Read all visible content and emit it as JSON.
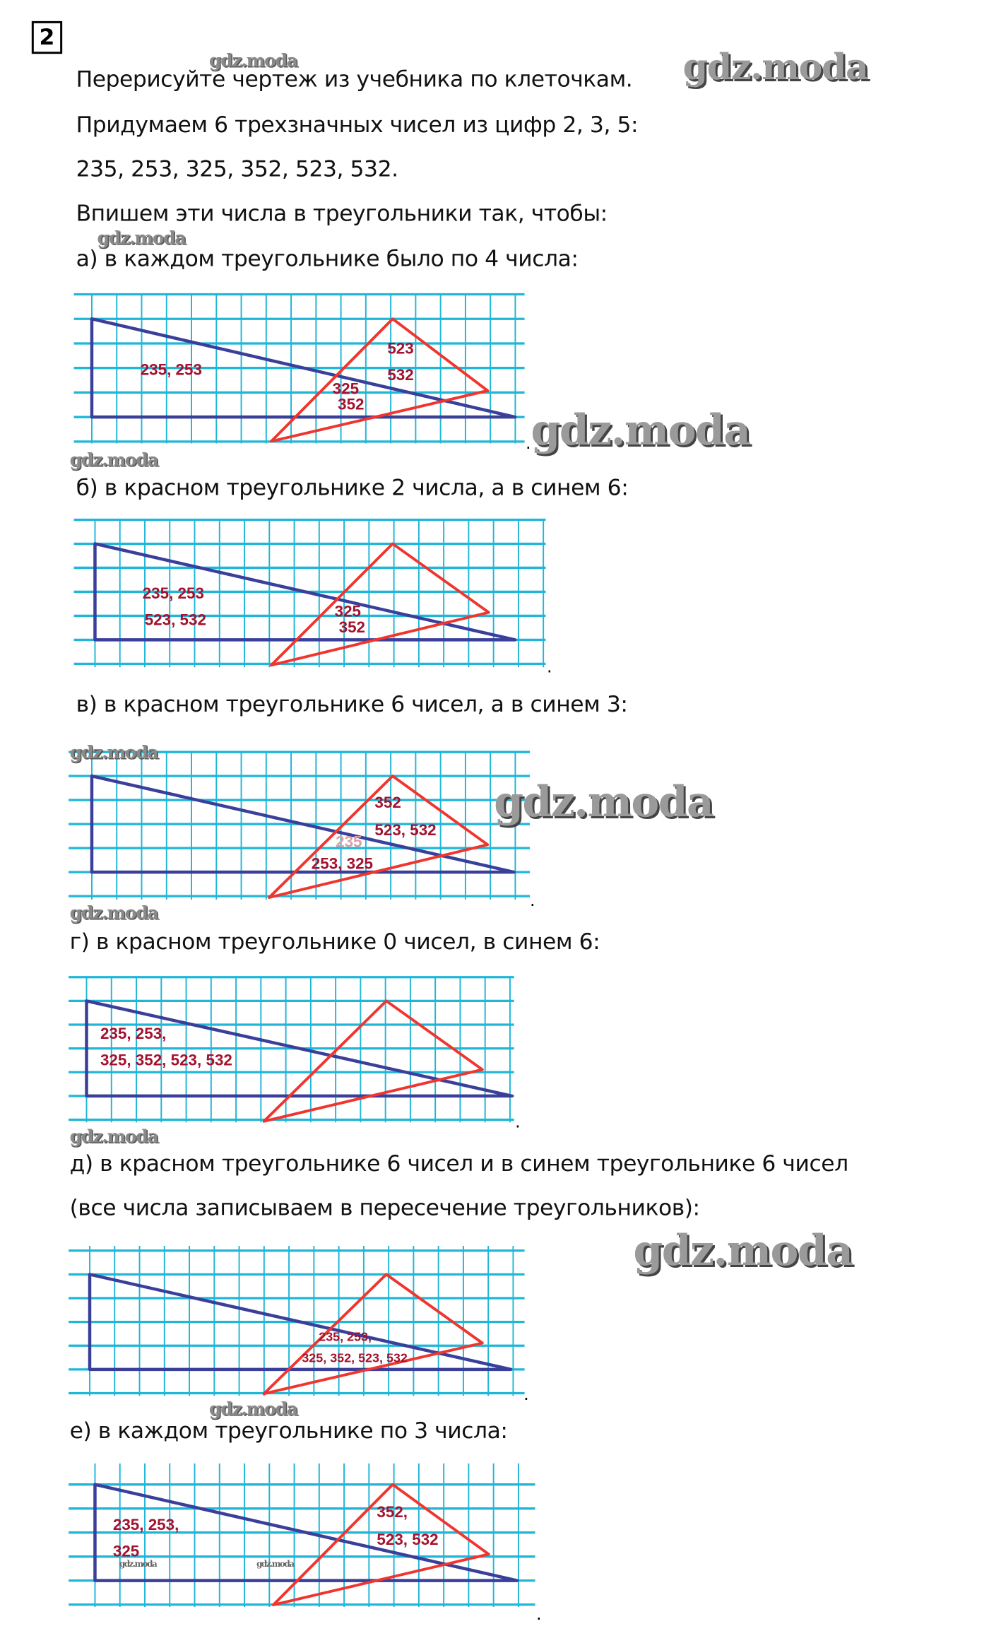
{
  "task_number": "2",
  "lines": {
    "l1": "Перерисуйте чертеж из учебника по клеточкам.",
    "l2": "Придумаем 6 трехзначных чисел из цифр 2, 3, 5:",
    "l3": "235, 253, 325, 352, 523, 532.",
    "l4": "Впишем эти числа в треугольники так, чтобы:"
  },
  "parts": [
    {
      "heading": "а) в каждом треугольнике было по 4 числа:",
      "labels": [
        "235, 253",
        "523",
        "532",
        "325",
        "352"
      ]
    },
    {
      "heading": "б) в красном треугольнике 2 числа, а в синем 6:",
      "labels": [
        "235, 253",
        "523, 532",
        "325",
        "352"
      ]
    },
    {
      "heading": "в) в красном треугольнике 6 чисел, а в синем 3:",
      "labels": [
        "352",
        "523, 532",
        "235",
        "253, 325"
      ]
    },
    {
      "heading": "г) в красном треугольнике 0 чисел, в синем 6:",
      "labels": [
        "235, 253,",
        "325, 352, 523, 532"
      ]
    },
    {
      "heading": "д) в красном треугольнике 6 чисел и в синем треугольнике 6 чисел",
      "heading2": "(все числа записываем в пересечение треугольников):",
      "labels": [
        "235, 253,",
        "325, 352, 523, 532"
      ]
    },
    {
      "heading": "е) в каждом треугольнике по 3 числа:",
      "labels": [
        "235, 253,",
        "325",
        "352,",
        "523, 532"
      ]
    }
  ],
  "period": ".",
  "watermark": "gdz.moda",
  "colors": {
    "grid": "#1fb6d8",
    "blue_triangle": "#3a3f9a",
    "red_triangle": "#f0352f",
    "labels": "#a3122e"
  }
}
